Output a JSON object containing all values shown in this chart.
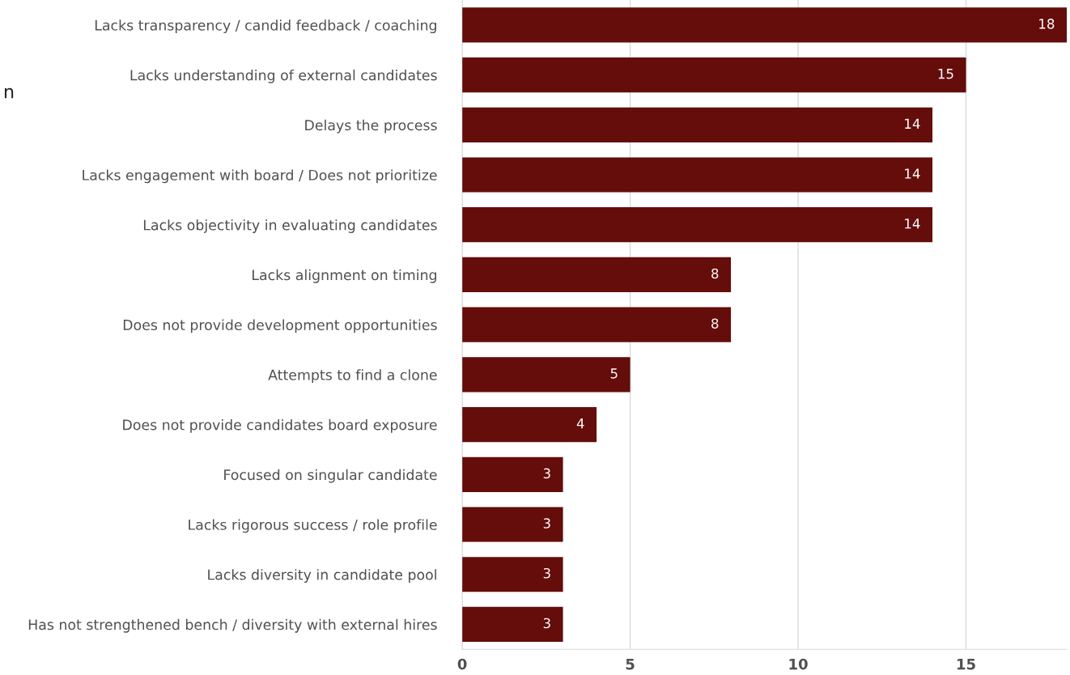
{
  "chart_data": {
    "type": "bar",
    "orientation": "horizontal",
    "categories": [
      "Lacks transparency / candid feedback / coaching",
      "Lacks understanding of external candidates",
      "Delays the process",
      "Lacks engagement with board / Does not prioritize",
      "Lacks objectivity in evaluating candidates",
      "Lacks alignment on timing",
      "Does not provide development opportunities",
      "Attempts to find a clone",
      "Does not provide candidates board exposure",
      "Focused on singular candidate",
      "Lacks rigorous success / role profile",
      "Lacks diversity in candidate pool",
      "Has not strengthened bench / diversity with external hires"
    ],
    "values": [
      18,
      15,
      14,
      14,
      14,
      8,
      8,
      5,
      4,
      3,
      3,
      3,
      3
    ],
    "color": "#640d0b",
    "xlim": [
      0,
      18
    ],
    "xticks": [
      0,
      5,
      10,
      15
    ],
    "grid": "x",
    "data_labels": true,
    "annotations": [
      "n"
    ]
  }
}
